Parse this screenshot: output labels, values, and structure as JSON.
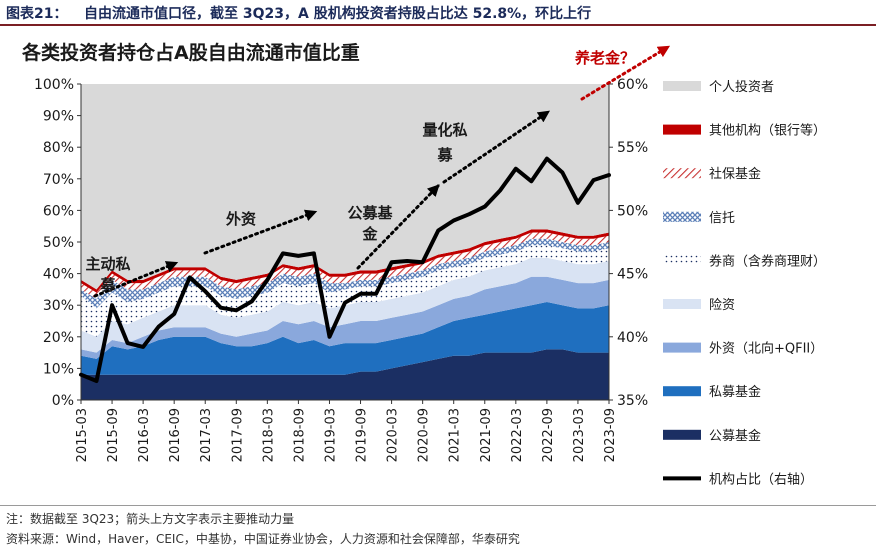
{
  "header": {
    "figure_label": "图表21：",
    "figure_title": "自由流通市值口径，截至 3Q23，A 股机构投资者持股占比达 52.8%，环比上行"
  },
  "chart_data": {
    "type": "area",
    "title": "各类投资者持仓占A股自由流通市值比重",
    "categories": [
      "2015-03",
      "2015-06",
      "2015-09",
      "2015-12",
      "2016-03",
      "2016-06",
      "2016-09",
      "2016-12",
      "2017-03",
      "2017-06",
      "2017-09",
      "2017-12",
      "2018-03",
      "2018-06",
      "2018-09",
      "2018-12",
      "2019-03",
      "2019-06",
      "2019-09",
      "2019-12",
      "2020-03",
      "2020-06",
      "2020-09",
      "2020-12",
      "2021-03",
      "2021-06",
      "2021-09",
      "2021-12",
      "2022-03",
      "2022-06",
      "2022-09",
      "2022-12",
      "2023-03",
      "2023-06",
      "2023-09"
    ],
    "x_tick_labels": [
      "2015-03",
      "2015-09",
      "2016-03",
      "2016-09",
      "2017-03",
      "2017-09",
      "2018-03",
      "2018-09",
      "2019-03",
      "2019-09",
      "2020-03",
      "2020-09",
      "2021-03",
      "2021-09",
      "2022-03",
      "2022-09",
      "2023-03",
      "2023-09"
    ],
    "left_axis": {
      "ylim": [
        0,
        100
      ],
      "ticks": [
        "0%",
        "10%",
        "20%",
        "30%",
        "40%",
        "50%",
        "60%",
        "70%",
        "80%",
        "90%",
        "100%"
      ]
    },
    "right_axis": {
      "ylim": [
        35,
        60
      ],
      "ticks": [
        "35%",
        "40%",
        "45%",
        "50%",
        "55%",
        "60%"
      ]
    },
    "stack_series": [
      {
        "name": "公募基金",
        "color": "#1b2f63",
        "pattern": "solid",
        "values": [
          8,
          8,
          8,
          8,
          8,
          8,
          8,
          8,
          8,
          8,
          8,
          8,
          8,
          8,
          8,
          8,
          8,
          8,
          9,
          9,
          10,
          11,
          12,
          13,
          14,
          14,
          15,
          15,
          15,
          15,
          16,
          16,
          15,
          15,
          15
        ]
      },
      {
        "name": "私募基金",
        "color": "#1f6fbf",
        "pattern": "solid",
        "values": [
          6,
          5,
          9,
          8,
          9,
          11,
          12,
          12,
          12,
          10,
          9,
          9,
          10,
          12,
          10,
          11,
          9,
          10,
          9,
          9,
          9,
          9,
          9,
          10,
          11,
          12,
          12,
          13,
          14,
          15,
          15,
          14,
          14,
          14,
          15
        ]
      },
      {
        "name": "外资（北向+QFII）",
        "color": "#8aa8dc",
        "pattern": "solid",
        "values": [
          2,
          2,
          2,
          2,
          3,
          3,
          3,
          3,
          3,
          3,
          3,
          4,
          4,
          5,
          6,
          6,
          6,
          6,
          7,
          7,
          7,
          7,
          7,
          7,
          7,
          7,
          8,
          8,
          8,
          9,
          8,
          8,
          8,
          8,
          8
        ]
      },
      {
        "name": "险资",
        "color": "#d9e3f3",
        "pattern": "solid",
        "values": [
          6,
          5,
          6,
          6,
          6,
          6,
          7,
          7,
          7,
          6,
          6,
          6,
          6,
          6,
          6,
          6,
          6,
          6,
          6,
          6,
          6,
          6,
          6,
          6,
          6,
          6,
          6,
          6,
          6,
          6,
          6,
          6,
          6,
          6,
          6
        ]
      },
      {
        "name": "券商（含券商理财）",
        "color": "#1b2f63",
        "pattern": "dots",
        "values": [
          11,
          9,
          9,
          7,
          6,
          6,
          6,
          6,
          6,
          6,
          6,
          6,
          6,
          6,
          6,
          6,
          5,
          5,
          5,
          5,
          5,
          5,
          5,
          5,
          4,
          4,
          4,
          4,
          4,
          4,
          4,
          4,
          4,
          4,
          4
        ]
      },
      {
        "name": "信托",
        "color": "#5b7fb8",
        "pattern": "cross",
        "values": [
          2,
          3,
          4,
          4,
          3,
          3,
          3,
          3,
          3,
          3,
          3,
          3,
          3,
          3,
          3,
          3,
          3,
          2,
          2,
          2,
          2,
          2,
          2,
          2,
          2,
          2,
          2,
          2,
          2,
          2,
          2,
          2,
          2,
          2,
          2
        ]
      },
      {
        "name": "社保基金",
        "color": "#c83232",
        "pattern": "hatch",
        "values": [
          2,
          2,
          2,
          2,
          2,
          2,
          2,
          2,
          2,
          2,
          2,
          2,
          2,
          2,
          2,
          2,
          2,
          2,
          2,
          2,
          2,
          2,
          2,
          2,
          2,
          2,
          2,
          2,
          2,
          2,
          2,
          2,
          2,
          2,
          2
        ]
      },
      {
        "name": "其他机构（银行等）",
        "color": "#c00000",
        "pattern": "solid",
        "values": [
          1,
          1,
          1,
          1,
          1,
          1,
          1,
          1,
          1,
          1,
          1,
          1,
          1,
          1,
          1,
          1,
          1,
          1,
          1,
          1,
          1,
          1,
          1,
          1,
          1,
          1,
          1,
          1,
          1,
          1,
          1,
          1,
          1,
          1,
          1
        ]
      },
      {
        "name": "个人投资者",
        "color": "#d9d9d9",
        "pattern": "solid",
        "remainder": true
      }
    ],
    "line_series": {
      "name": "机构占比（右轴）",
      "color": "#000000",
      "axis": "right",
      "values": [
        37.0,
        36.5,
        42.5,
        39.5,
        39.2,
        40.8,
        41.8,
        44.7,
        43.6,
        42.3,
        42.1,
        42.8,
        44.5,
        46.6,
        46.4,
        46.6,
        40.0,
        42.7,
        43.4,
        43.4,
        45.9,
        46.0,
        45.9,
        48.4,
        49.2,
        49.7,
        50.3,
        51.6,
        53.3,
        52.3,
        54.1,
        53.0,
        50.6,
        52.4,
        52.8
      ]
    },
    "annotations": [
      {
        "text": "主动私募",
        "color": "#1a1a1a"
      },
      {
        "text": "外资",
        "color": "#1a1a1a"
      },
      {
        "text": "公募基金",
        "color": "#1a1a1a"
      },
      {
        "text": "量化私募",
        "color": "#1a1a1a"
      },
      {
        "text": "养老金？",
        "color": "#c00000"
      }
    ]
  },
  "footer": {
    "note": "注：数据截至 3Q23；箭头上方文字表示主要推动力量",
    "source": "资料来源：Wind，Haver，CEIC，中基协，中国证券业协会，人力资源和社会保障部，华泰研究"
  }
}
